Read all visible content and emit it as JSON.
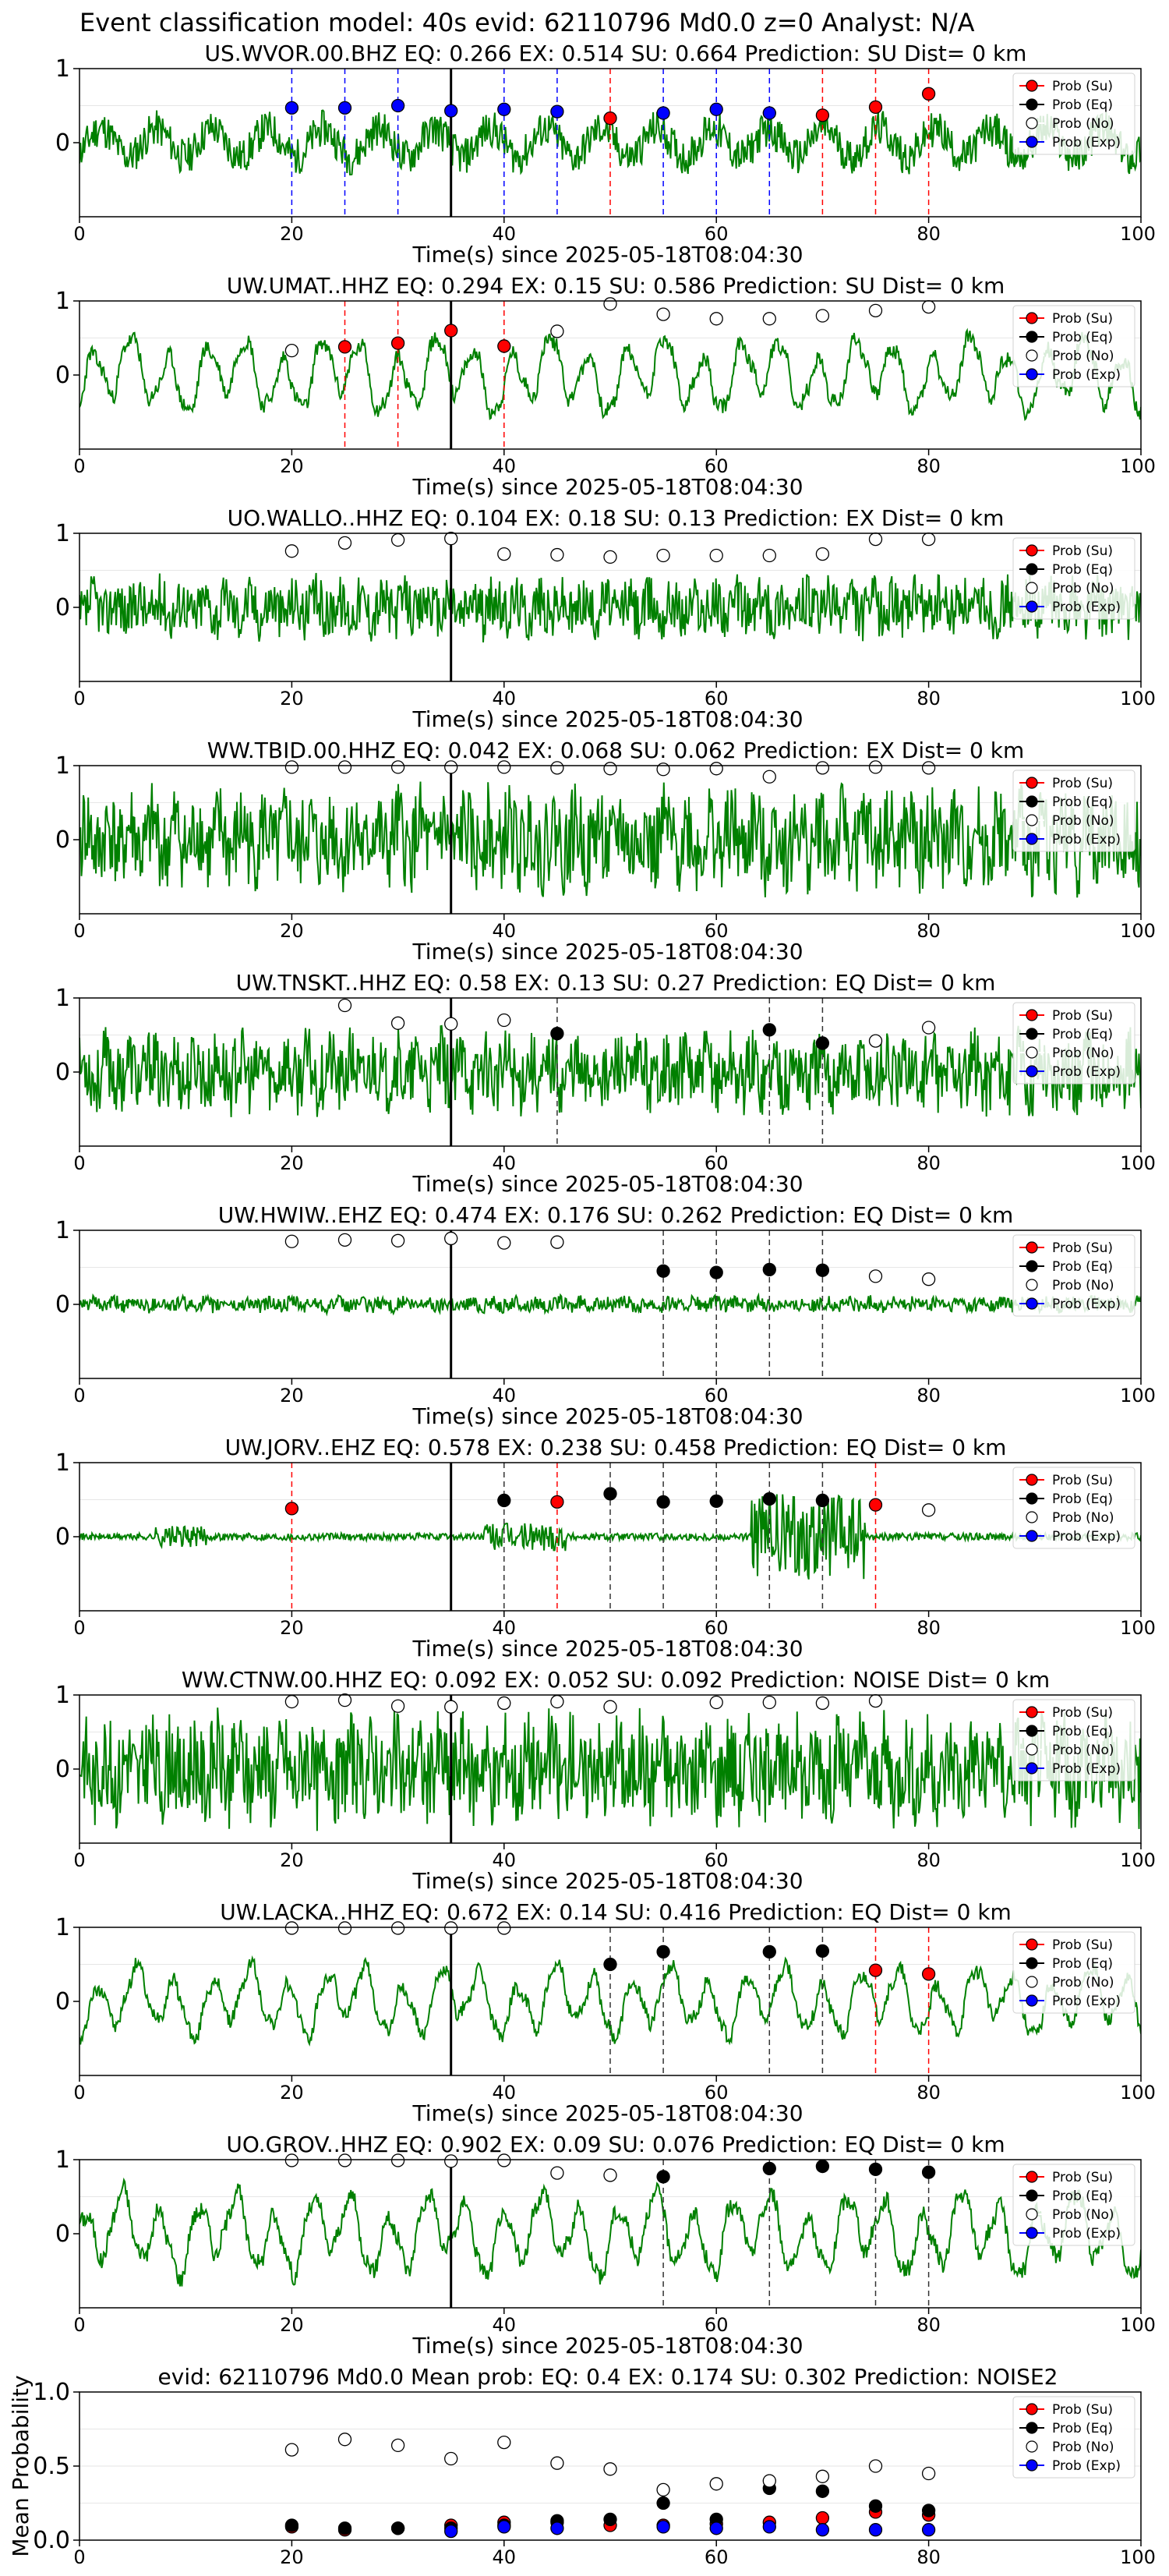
{
  "header": {
    "title": "Event classification model: 40s evid: 62110796 Md0.0 z=0 Analyst: N/A"
  },
  "legend_labels": [
    "Prob (Su)",
    "Prob (Eq)",
    "Prob (No)",
    "Prob (Exp)"
  ],
  "colors": {
    "su": "#ff0000",
    "eq": "#000000",
    "no": "#ffffff",
    "exp": "#0000ff",
    "trace": "#008000"
  },
  "chart_data": [
    {
      "type": "line",
      "title": "US.WVOR.00.BHZ   EQ: 0.266  EX: 0.514  SU: 0.664   Prediction: SU    Dist= 0 km",
      "xlabel": "Time(s) since 2025-05-18T08:04:30",
      "xlim": [
        0,
        100
      ],
      "ylim": [
        -1,
        1
      ],
      "xticks": [
        0,
        20,
        40,
        60,
        80,
        100
      ],
      "yticks": [
        0,
        1
      ],
      "signal": "pick",
      "trace_style": {
        "amp": 0.55,
        "kind": "mixed",
        "seed": 11
      },
      "series": [
        {
          "key": "su",
          "x": [
            50,
            70,
            75,
            80
          ],
          "y": [
            0.33,
            0.37,
            0.48,
            0.66
          ]
        },
        {
          "key": "eq",
          "x": [],
          "y": []
        },
        {
          "key": "no",
          "x": [],
          "y": []
        },
        {
          "key": "exp",
          "x": [
            20,
            25,
            30,
            35,
            40,
            45,
            55,
            60,
            65
          ],
          "y": [
            0.47,
            0.47,
            0.5,
            0.43,
            0.45,
            0.42,
            0.4,
            0.45,
            0.4
          ]
        }
      ],
      "vlines": [
        {
          "key": "exp",
          "x": [
            20,
            25,
            30,
            40,
            45,
            55,
            60,
            65
          ]
        },
        {
          "key": "su",
          "x": [
            50,
            70,
            75,
            80
          ]
        }
      ]
    },
    {
      "type": "line",
      "title": "UW.UMAT..HHZ   EQ: 0.294  EX: 0.15  SU: 0.586   Prediction: SU    Dist= 0 km",
      "xlabel": "Time(s) since 2025-05-18T08:04:30",
      "xlim": [
        0,
        100
      ],
      "ylim": [
        -1,
        1
      ],
      "xticks": [
        0,
        20,
        40,
        60,
        80,
        100
      ],
      "yticks": [
        0,
        1
      ],
      "signal": "pick",
      "trace_style": {
        "amp": 0.6,
        "kind": "wave",
        "seed": 23
      },
      "series": [
        {
          "key": "su",
          "x": [
            25,
            30,
            35,
            40
          ],
          "y": [
            0.38,
            0.43,
            0.6,
            0.39
          ]
        },
        {
          "key": "eq",
          "x": [],
          "y": []
        },
        {
          "key": "no",
          "x": [
            20,
            45,
            50,
            55,
            60,
            65,
            70,
            75,
            80
          ],
          "y": [
            0.33,
            0.59,
            0.96,
            0.82,
            0.76,
            0.76,
            0.8,
            0.87,
            0.92
          ]
        },
        {
          "key": "exp",
          "x": [],
          "y": []
        }
      ],
      "vlines": [
        {
          "key": "su",
          "x": [
            25,
            30,
            40
          ]
        }
      ]
    },
    {
      "type": "line",
      "title": "UO.WALLO..HHZ   EQ: 0.104  EX: 0.18  SU: 0.13   Prediction: EX    Dist= 0 km",
      "xlabel": "Time(s) since 2025-05-18T08:04:30",
      "xlim": [
        0,
        100
      ],
      "ylim": [
        -1,
        1
      ],
      "xticks": [
        0,
        20,
        40,
        60,
        80,
        100
      ],
      "yticks": [
        0,
        1
      ],
      "signal": "pick",
      "trace_style": {
        "amp": 0.45,
        "kind": "noise",
        "seed": 37
      },
      "series": [
        {
          "key": "su",
          "x": [],
          "y": []
        },
        {
          "key": "eq",
          "x": [],
          "y": []
        },
        {
          "key": "no",
          "x": [
            20,
            25,
            30,
            35,
            40,
            45,
            50,
            55,
            60,
            65,
            70,
            75,
            80
          ],
          "y": [
            0.76,
            0.87,
            0.91,
            0.93,
            0.72,
            0.71,
            0.68,
            0.7,
            0.7,
            0.7,
            0.72,
            0.92,
            0.92
          ]
        },
        {
          "key": "exp",
          "x": [],
          "y": []
        }
      ],
      "vlines": []
    },
    {
      "type": "line",
      "title": "WW.TBID.00.HHZ   EQ: 0.042  EX: 0.068  SU: 0.062   Prediction: EX    Dist= 0 km",
      "xlabel": "Time(s) since 2025-05-18T08:04:30",
      "xlim": [
        0,
        100
      ],
      "ylim": [
        -1,
        1
      ],
      "xticks": [
        0,
        20,
        40,
        60,
        80,
        100
      ],
      "yticks": [
        0,
        1
      ],
      "signal": "pick",
      "trace_style": {
        "amp": 0.75,
        "kind": "noise",
        "seed": 41
      },
      "series": [
        {
          "key": "su",
          "x": [],
          "y": []
        },
        {
          "key": "eq",
          "x": [],
          "y": []
        },
        {
          "key": "no",
          "x": [
            20,
            25,
            30,
            35,
            40,
            45,
            50,
            55,
            60,
            65,
            70,
            75,
            80
          ],
          "y": [
            0.98,
            0.98,
            0.98,
            0.98,
            0.98,
            0.97,
            0.96,
            0.95,
            0.96,
            0.85,
            0.97,
            0.98,
            0.97
          ]
        },
        {
          "key": "exp",
          "x": [],
          "y": []
        }
      ],
      "vlines": []
    },
    {
      "type": "line",
      "title": "UW.TNSKT..HHZ   EQ: 0.58  EX: 0.13  SU: 0.27   Prediction: EQ    Dist= 0 km",
      "xlabel": "Time(s) since 2025-05-18T08:04:30",
      "xlim": [
        0,
        100
      ],
      "ylim": [
        -1,
        1
      ],
      "xticks": [
        0,
        20,
        40,
        60,
        80,
        100
      ],
      "yticks": [
        0,
        1
      ],
      "signal": "pick",
      "trace_style": {
        "amp": 0.6,
        "kind": "noise",
        "seed": 53
      },
      "series": [
        {
          "key": "su",
          "x": [],
          "y": []
        },
        {
          "key": "eq",
          "x": [
            45,
            65,
            70
          ],
          "y": [
            0.52,
            0.57,
            0.39
          ]
        },
        {
          "key": "no",
          "x": [
            25,
            30,
            35,
            40,
            75,
            80
          ],
          "y": [
            0.9,
            0.66,
            0.65,
            0.7,
            0.42,
            0.6
          ]
        },
        {
          "key": "exp",
          "x": [],
          "y": []
        }
      ],
      "vlines": [
        {
          "key": "eq",
          "x": [
            45,
            65,
            70
          ]
        }
      ]
    },
    {
      "type": "line",
      "title": "UW.HWIW..EHZ   EQ: 0.474  EX: 0.176  SU: 0.262   Prediction: EQ    Dist= 0 km",
      "xlabel": "Time(s) since 2025-05-18T08:04:30",
      "xlim": [
        0,
        100
      ],
      "ylim": [
        -1,
        1
      ],
      "xticks": [
        0,
        20,
        40,
        60,
        80,
        100
      ],
      "yticks": [
        0,
        1
      ],
      "signal": "pick",
      "trace_style": {
        "amp": 0.12,
        "kind": "noise",
        "seed": 61
      },
      "series": [
        {
          "key": "su",
          "x": [],
          "y": []
        },
        {
          "key": "eq",
          "x": [
            55,
            60,
            65,
            70
          ],
          "y": [
            0.45,
            0.43,
            0.47,
            0.46
          ]
        },
        {
          "key": "no",
          "x": [
            20,
            25,
            30,
            35,
            40,
            45,
            75,
            80
          ],
          "y": [
            0.85,
            0.87,
            0.86,
            0.89,
            0.83,
            0.84,
            0.38,
            0.34
          ]
        },
        {
          "key": "exp",
          "x": [],
          "y": []
        }
      ],
      "vlines": [
        {
          "key": "eq",
          "x": [
            55,
            60,
            65,
            70
          ]
        }
      ]
    },
    {
      "type": "line",
      "title": "UW.JORV..EHZ   EQ: 0.578  EX: 0.238  SU: 0.458   Prediction: EQ    Dist= 0 km",
      "xlabel": "Time(s) since 2025-05-18T08:04:30",
      "xlim": [
        0,
        100
      ],
      "ylim": [
        -1,
        1
      ],
      "xticks": [
        0,
        20,
        40,
        60,
        80,
        100
      ],
      "yticks": [
        0,
        1
      ],
      "signal": "pick",
      "trace_style": {
        "amp": 0.06,
        "kind": "bursts",
        "seed": 71
      },
      "series": [
        {
          "key": "su",
          "x": [
            20,
            45,
            75
          ],
          "y": [
            0.38,
            0.47,
            0.43
          ]
        },
        {
          "key": "eq",
          "x": [
            40,
            50,
            55,
            60,
            65,
            70
          ],
          "y": [
            0.49,
            0.58,
            0.47,
            0.48,
            0.51,
            0.49
          ]
        },
        {
          "key": "no",
          "x": [
            80
          ],
          "y": [
            0.36
          ]
        },
        {
          "key": "exp",
          "x": [],
          "y": []
        }
      ],
      "vlines": [
        {
          "key": "su",
          "x": [
            20,
            45,
            75
          ]
        },
        {
          "key": "eq",
          "x": [
            40,
            50,
            55,
            60,
            65,
            70
          ]
        }
      ]
    },
    {
      "type": "line",
      "title": "WW.CTNW.00.HHZ   EQ: 0.092  EX: 0.052  SU: 0.092   Prediction: NOISE    Dist= 0 km",
      "xlabel": "Time(s) since 2025-05-18T08:04:30",
      "xlim": [
        0,
        100
      ],
      "ylim": [
        -1,
        1
      ],
      "xticks": [
        0,
        20,
        40,
        60,
        80,
        100
      ],
      "yticks": [
        0,
        1
      ],
      "signal": "pick",
      "trace_style": {
        "amp": 0.8,
        "kind": "noise",
        "seed": 83
      },
      "series": [
        {
          "key": "su",
          "x": [],
          "y": []
        },
        {
          "key": "eq",
          "x": [],
          "y": []
        },
        {
          "key": "no",
          "x": [
            20,
            25,
            30,
            35,
            40,
            45,
            50,
            60,
            65,
            70,
            75
          ],
          "y": [
            0.91,
            0.93,
            0.85,
            0.84,
            0.89,
            0.91,
            0.84,
            0.9,
            0.9,
            0.89,
            0.92
          ]
        },
        {
          "key": "exp",
          "x": [],
          "y": []
        }
      ],
      "vlines": []
    },
    {
      "type": "line",
      "title": "UW.LACKA..HHZ   EQ: 0.672  EX: 0.14  SU: 0.416   Prediction: EQ    Dist= 0 km",
      "xlabel": "Time(s) since 2025-05-18T08:04:30",
      "xlim": [
        0,
        100
      ],
      "ylim": [
        -1,
        1
      ],
      "xticks": [
        0,
        20,
        40,
        60,
        80,
        100
      ],
      "yticks": [
        0,
        1
      ],
      "signal": "pick",
      "trace_style": {
        "amp": 0.55,
        "kind": "wave",
        "seed": 97
      },
      "series": [
        {
          "key": "su",
          "x": [
            75,
            80
          ],
          "y": [
            0.42,
            0.37
          ]
        },
        {
          "key": "eq",
          "x": [
            50,
            55,
            65,
            70
          ],
          "y": [
            0.5,
            0.67,
            0.67,
            0.68
          ]
        },
        {
          "key": "no",
          "x": [
            20,
            25,
            30,
            35,
            40
          ],
          "y": [
            0.99,
            0.99,
            0.99,
            0.99,
            0.99
          ]
        },
        {
          "key": "exp",
          "x": [],
          "y": []
        }
      ],
      "vlines": [
        {
          "key": "eq",
          "x": [
            50,
            55,
            65,
            70
          ]
        },
        {
          "key": "su",
          "x": [
            75,
            80
          ]
        }
      ]
    },
    {
      "type": "line",
      "title": "UO.GROV..HHZ   EQ: 0.902  EX: 0.09  SU: 0.076   Prediction: EQ    Dist= 0 km",
      "xlabel": "Time(s) since 2025-05-18T08:04:30",
      "xlim": [
        0,
        100
      ],
      "ylim": [
        -1,
        1
      ],
      "xticks": [
        0,
        20,
        40,
        60,
        80,
        100
      ],
      "yticks": [
        0,
        1
      ],
      "signal": "pick",
      "trace_style": {
        "amp": 0.65,
        "kind": "wave",
        "seed": 101
      },
      "series": [
        {
          "key": "su",
          "x": [],
          "y": []
        },
        {
          "key": "eq",
          "x": [
            55,
            65,
            70,
            75,
            80
          ],
          "y": [
            0.77,
            0.88,
            0.91,
            0.87,
            0.83
          ]
        },
        {
          "key": "no",
          "x": [
            20,
            25,
            30,
            35,
            40,
            45,
            50
          ],
          "y": [
            0.99,
            0.99,
            0.99,
            0.98,
            0.99,
            0.82,
            0.79
          ]
        },
        {
          "key": "exp",
          "x": [],
          "y": []
        }
      ],
      "vlines": [
        {
          "key": "eq",
          "x": [
            55,
            65,
            75,
            80
          ]
        }
      ]
    },
    {
      "type": "scatter",
      "title": "evid: 62110796  Md0.0   Mean prob:   EQ: 0.4  EX: 0.174  SU: 0.302   Prediction: NOISE2",
      "xlabel": "",
      "ylabel": "Mean Probability",
      "xlim": [
        0,
        100
      ],
      "ylim": [
        0,
        1
      ],
      "xticks": [
        0,
        20,
        40,
        60,
        80,
        100
      ],
      "yticks": [
        0.0,
        0.5,
        1.0
      ],
      "signal": "none",
      "series": [
        {
          "key": "su",
          "x": [
            20,
            25,
            30,
            35,
            40,
            45,
            50,
            55,
            60,
            65,
            70,
            75,
            80
          ],
          "y": [
            0.09,
            0.07,
            0.08,
            0.1,
            0.12,
            0.12,
            0.1,
            0.1,
            0.11,
            0.12,
            0.15,
            0.19,
            0.17
          ]
        },
        {
          "key": "eq",
          "x": [
            20,
            25,
            30,
            35,
            40,
            45,
            50,
            55,
            60,
            65,
            70,
            75,
            80
          ],
          "y": [
            0.1,
            0.08,
            0.08,
            0.08,
            0.1,
            0.13,
            0.14,
            0.25,
            0.14,
            0.35,
            0.33,
            0.23,
            0.2
          ]
        },
        {
          "key": "no",
          "x": [
            20,
            25,
            30,
            35,
            40,
            45,
            50,
            55,
            60,
            65,
            70,
            75,
            80
          ],
          "y": [
            0.61,
            0.68,
            0.64,
            0.55,
            0.66,
            0.52,
            0.48,
            0.34,
            0.38,
            0.4,
            0.43,
            0.5,
            0.45
          ]
        },
        {
          "key": "exp",
          "x": [
            35,
            40,
            45,
            55,
            60,
            65,
            70,
            75,
            80
          ],
          "y": [
            0.06,
            0.09,
            0.08,
            0.09,
            0.08,
            0.09,
            0.07,
            0.07,
            0.07
          ]
        }
      ],
      "vlines": []
    }
  ]
}
